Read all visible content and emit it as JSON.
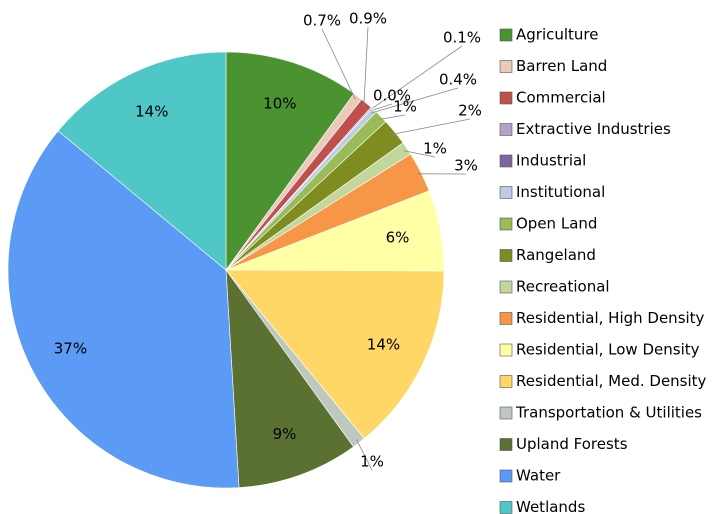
{
  "chart_data": {
    "type": "pie",
    "categories": [
      "Agriculture",
      "Barren Land",
      "Commercial",
      "Extractive Industries",
      "Industrial",
      "Institutional",
      "Open Land",
      "Rangeland",
      "Recreational",
      "Residential, High Density",
      "Residential, Low Density",
      "Residential, Med. Density",
      "Transportation & Utilities",
      "Upland Forests",
      "Water",
      "Wetlands"
    ],
    "values": [
      10,
      0.7,
      0.9,
      0.1,
      0,
      0.4,
      1,
      2,
      1,
      3,
      6,
      14,
      1,
      9,
      37,
      14
    ],
    "value_labels": [
      "10%",
      "0.7%",
      "0.9%",
      "0.1%",
      "0.0%",
      "0.4%",
      "1%",
      "2%",
      "1%",
      "3%",
      "6%",
      "14%",
      "1%",
      "9%",
      "37%",
      "14%"
    ],
    "colors": [
      "#4b9330",
      "#e8cbb8",
      "#c0504d",
      "#b3a2c7",
      "#8064a2",
      "#b9cde5",
      "#9bbb59",
      "#7f8c1f",
      "#c3d69b",
      "#f79646",
      "#ffffa6",
      "#ffd766",
      "#bfc8bf",
      "#5b7132",
      "#5b9bf5",
      "#4fc7c7"
    ],
    "legend": "right"
  }
}
